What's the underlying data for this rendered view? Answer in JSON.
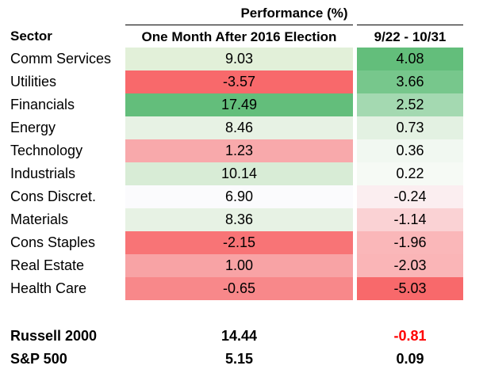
{
  "table": {
    "title": "Performance (%)",
    "headers": {
      "sector": "Sector",
      "one_month": "One Month After 2016 Election",
      "recent": "9/22 - 10/31"
    },
    "rows": [
      {
        "sector": "Comm Services",
        "one_month": "9.03",
        "recent": "4.08",
        "one_month_bg": "#e2f0d9",
        "recent_bg": "#63be7b"
      },
      {
        "sector": "Utilities",
        "one_month": "-3.57",
        "recent": "3.66",
        "one_month_bg": "#f8696b",
        "recent_bg": "#77c78c"
      },
      {
        "sector": "Financials",
        "one_month": "17.49",
        "recent": "2.52",
        "one_month_bg": "#63be7b",
        "recent_bg": "#a4d9b1"
      },
      {
        "sector": "Energy",
        "one_month": "8.46",
        "recent": "0.73",
        "one_month_bg": "#e7f2e4",
        "recent_bg": "#e3f1e2"
      },
      {
        "sector": "Technology",
        "one_month": "1.23",
        "recent": "0.36",
        "one_month_bg": "#f8a9ab",
        "recent_bg": "#f1f8f1"
      },
      {
        "sector": "Industrials",
        "one_month": "10.14",
        "recent": "0.22",
        "one_month_bg": "#d8ecd6",
        "recent_bg": "#f6faf5"
      },
      {
        "sector": "Cons Discret.",
        "one_month": "6.90",
        "recent": "-0.24",
        "one_month_bg": "#fbfbfd",
        "recent_bg": "#fbeef0"
      },
      {
        "sector": "Materials",
        "one_month": "8.36",
        "recent": "-1.14",
        "one_month_bg": "#e7f2e4",
        "recent_bg": "#fad2d4"
      },
      {
        "sector": "Cons Staples",
        "one_month": "-2.15",
        "recent": "-1.96",
        "one_month_bg": "#f87476",
        "recent_bg": "#fab7b9"
      },
      {
        "sector": "Real Estate",
        "one_month": "1.00",
        "recent": "-2.03",
        "one_month_bg": "#f8a3a5",
        "recent_bg": "#fab5b7"
      },
      {
        "sector": "Health Care",
        "one_month": "-0.65",
        "recent": "-5.03",
        "one_month_bg": "#f8888a",
        "recent_bg": "#f8696b"
      }
    ],
    "summary": [
      {
        "sector": "Russell 2000",
        "one_month": "14.44",
        "recent": "-0.81",
        "recent_color": "#ff0000"
      },
      {
        "sector": "S&P 500",
        "one_month": "5.15",
        "recent": "0.09",
        "recent_color": "#000000"
      }
    ]
  }
}
